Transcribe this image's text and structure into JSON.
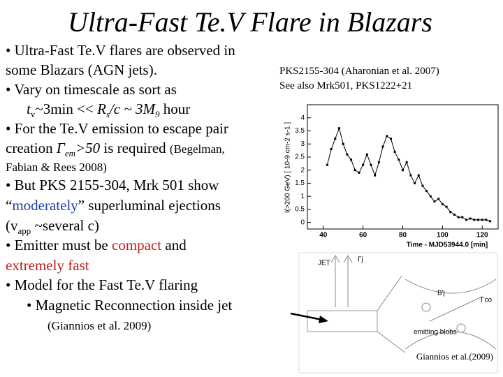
{
  "title": "Ultra-Fast Te.V Flare in Blazars",
  "body": {
    "lines": [
      [
        "• Ultra-Fast Te.V flares are observed in"
      ],
      [
        "some Blazars (AGN jets)."
      ],
      [
        "• Vary on timescale as sort as"
      ],
      [
        "t",
        "v",
        "~3min << ",
        "R",
        "s",
        "/c ~ 3M",
        "9",
        " hour"
      ],
      [
        "• For the Te.V emission to escape pair"
      ],
      [
        "creation ",
        "Γ",
        "em",
        ">50",
        " is required ",
        "(Begelman,"
      ],
      [
        "Fabian & Rees 2008)"
      ],
      [
        "• But PKS 2155-304, Mrk 501 show"
      ],
      [
        "“",
        "moderately",
        "” superluminal ejections"
      ],
      [
        "(v",
        "app",
        " ~several c)"
      ],
      [
        "• Emitter must be ",
        "compact",
        " and"
      ],
      [
        "extremely fast"
      ],
      [
        "•  Model for the Fast Te.V flaring"
      ],
      [
        "•  Magnetic Reconnection inside jet"
      ],
      [
        "(Giannios et al. 2009)"
      ]
    ]
  },
  "figure": {
    "caption": [
      "PKS2155-304 (Aharonian et al. 2007)",
      "See also Mrk501, PKS1222+21"
    ],
    "diagram_labels": [
      "JET",
      "Γj",
      "B'j",
      "Γco",
      "emitting blobs"
    ],
    "credit": "Giannios et al.(2009)"
  },
  "chart_data": {
    "type": "line",
    "x_label": "Time - MJD53944.0 [min]",
    "y_label": "I(>200 GeV) [ 10-9 cm-2 s-1 ]",
    "x": [
      42,
      44,
      46,
      48,
      50,
      52,
      54,
      56,
      58,
      60,
      62,
      64,
      66,
      68,
      70,
      72,
      74,
      76,
      78,
      80,
      82,
      84,
      86,
      88,
      90,
      92,
      94,
      96,
      98,
      100,
      102,
      104,
      106,
      108,
      110,
      112,
      114,
      116,
      118,
      120,
      122,
      124
    ],
    "series": [
      {
        "color": "#000000",
        "values": [
          2.2,
          2.8,
          3.2,
          3.6,
          3.0,
          2.6,
          2.4,
          2.0,
          1.9,
          2.2,
          2.6,
          2.2,
          1.8,
          2.3,
          2.9,
          3.3,
          3.2,
          2.7,
          2.4,
          2.0,
          2.3,
          1.8,
          1.5,
          1.8,
          1.4,
          1.2,
          1.0,
          0.8,
          0.9,
          0.7,
          0.6,
          0.4,
          0.3,
          0.2,
          0.2,
          0.1,
          0.15,
          0.1,
          0.1,
          0.1,
          0.1,
          0.05
        ]
      }
    ],
    "xlim": [
      32,
      128
    ],
    "ylim": [
      -0.25,
      4.5
    ],
    "xticks": [
      40,
      60,
      80,
      100,
      120
    ],
    "yticks": [
      0,
      0.5,
      1,
      1.5,
      2,
      2.5,
      3,
      3.5,
      4
    ]
  }
}
